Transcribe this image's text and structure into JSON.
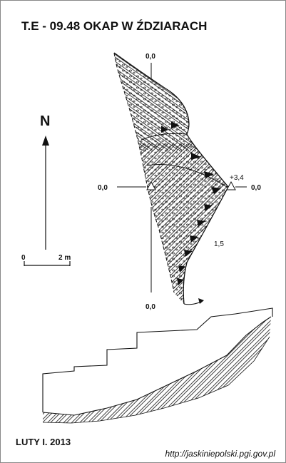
{
  "title": "T.E - 09.48  OKAP W ŹDZIARACH",
  "date": "LUTY I. 2013",
  "source_url": "http://jaskiniepolski.pgi.gov.pl",
  "north_label": "N",
  "scale": {
    "zero_label": "0",
    "end_label": "2 m"
  },
  "levels": {
    "top": "0,0",
    "left": "0,0",
    "right": "0,0",
    "bottom": "0,0",
    "right_peak": "+3,4",
    "depth": "1,5"
  },
  "colors": {
    "ink": "#111111",
    "frame": "#888888",
    "paper": "#ffffff"
  }
}
